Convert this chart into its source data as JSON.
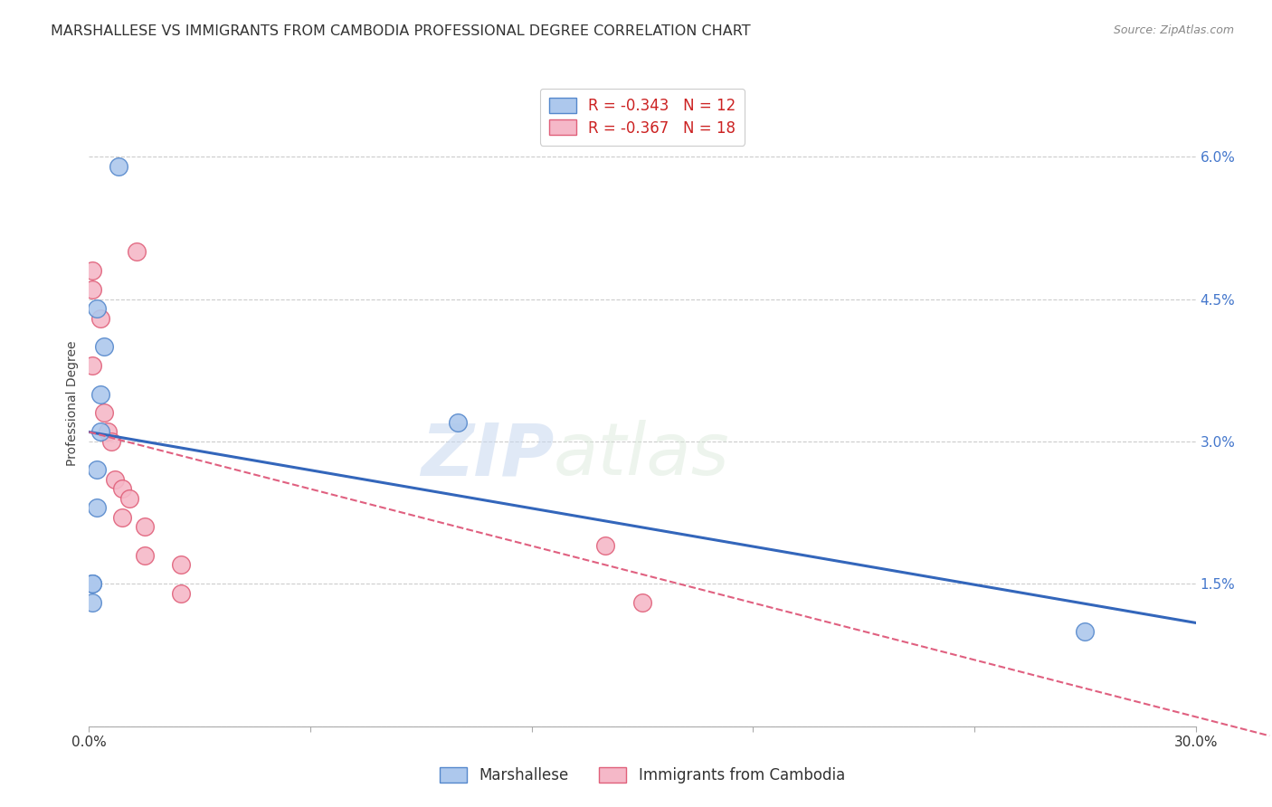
{
  "title": "MARSHALLESE VS IMMIGRANTS FROM CAMBODIA PROFESSIONAL DEGREE CORRELATION CHART",
  "source": "Source: ZipAtlas.com",
  "ylabel": "Professional Degree",
  "xmin": 0.0,
  "xmax": 0.3,
  "ymin": 0.0,
  "ymax": 0.068,
  "blue_r": -0.343,
  "blue_n": 12,
  "pink_r": -0.367,
  "pink_n": 18,
  "blue_color": "#adc8ed",
  "pink_color": "#f5b8c8",
  "blue_edge": "#5588cc",
  "pink_edge": "#e0607a",
  "trend_blue": "#3366bb",
  "trend_pink": "#e06080",
  "watermark_zip": "ZIP",
  "watermark_atlas": "atlas",
  "blue_scatter_x": [
    0.008,
    0.002,
    0.004,
    0.003,
    0.003,
    0.002,
    0.002,
    0.001,
    0.001,
    0.001,
    0.1,
    0.27
  ],
  "blue_scatter_y": [
    0.059,
    0.044,
    0.04,
    0.035,
    0.031,
    0.027,
    0.023,
    0.015,
    0.015,
    0.013,
    0.032,
    0.01
  ],
  "pink_scatter_x": [
    0.001,
    0.001,
    0.001,
    0.003,
    0.013,
    0.004,
    0.005,
    0.006,
    0.007,
    0.009,
    0.009,
    0.011,
    0.015,
    0.015,
    0.025,
    0.025,
    0.14,
    0.15
  ],
  "pink_scatter_y": [
    0.048,
    0.046,
    0.038,
    0.043,
    0.05,
    0.033,
    0.031,
    0.03,
    0.026,
    0.025,
    0.022,
    0.024,
    0.021,
    0.018,
    0.017,
    0.014,
    0.019,
    0.013
  ],
  "blue_intercept": 0.031,
  "blue_slope": -0.067,
  "pink_intercept": 0.031,
  "pink_slope": -0.1,
  "legend_label_blue": "Marshallese",
  "legend_label_pink": "Immigrants from Cambodia",
  "title_fontsize": 11.5,
  "axis_label_fontsize": 10,
  "tick_fontsize": 11,
  "legend_fontsize": 12
}
